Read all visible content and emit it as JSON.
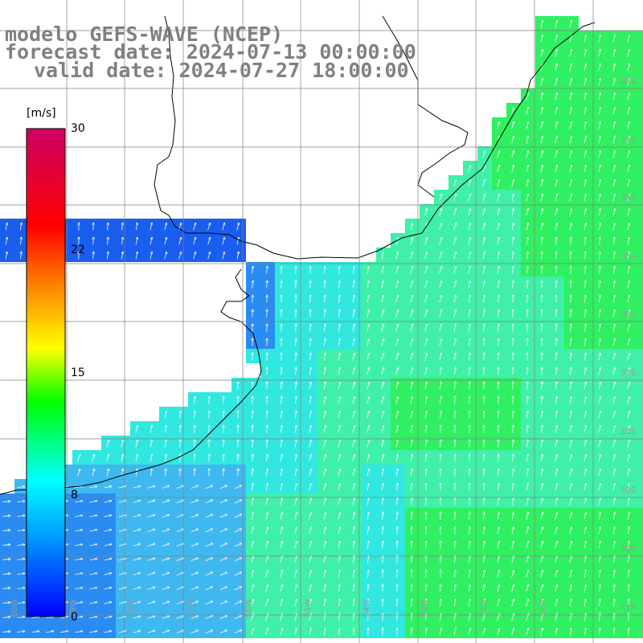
{
  "header": {
    "line1": "modelo GEFS-WAVE (NCEP)",
    "line2": "forecast date: 2024-07-13 00:00:00",
    "line3": "valid date: 2024-07-27 18:00:00"
  },
  "colorbar": {
    "unit": "[m/s]",
    "ticks": [
      "30",
      "22",
      "15",
      "8",
      "0"
    ],
    "stops": [
      "#0000ff",
      "#00aaff",
      "#00ffff",
      "#00ff00",
      "#ffff00",
      "#ff8000",
      "#ff0000",
      "#cc0066"
    ]
  },
  "map": {
    "lat_labels": [
      "32S",
      "33S",
      "34S",
      "35S",
      "36S",
      "37S",
      "38S",
      "39S",
      "40S",
      "41S"
    ],
    "lon_labels": [
      "60W",
      "59W",
      "58W",
      "57W",
      "56W",
      "55W",
      "54W",
      "53W",
      "52W",
      "51W"
    ],
    "field_colors": {
      "deep_blue": "#1a5ef0",
      "blue": "#2a8cf2",
      "sky": "#3fb8f0",
      "cyan": "#30e8e0",
      "aqua_green": "#3ff0a8",
      "green": "#2ff060",
      "land": "#ffffff",
      "grid": "#808080"
    }
  }
}
